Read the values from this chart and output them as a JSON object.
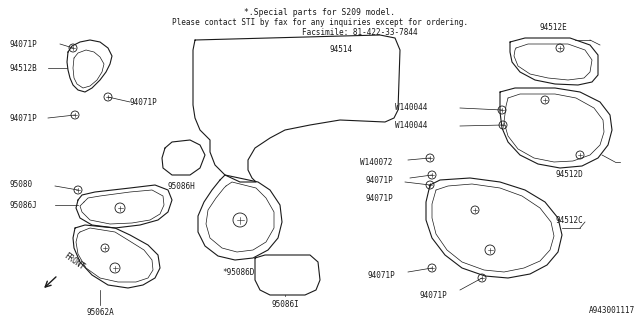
{
  "bg_color": "#ffffff",
  "line_color": "#1a1a1a",
  "text_color": "#1a1a1a",
  "title_line1": "*.Special parts for S209 model.",
  "title_line2": "Please contact STI by fax for any inquiries except for ordering.",
  "title_line3": "Facsimile: 81-422-33-7844",
  "part_number": "A943001117"
}
